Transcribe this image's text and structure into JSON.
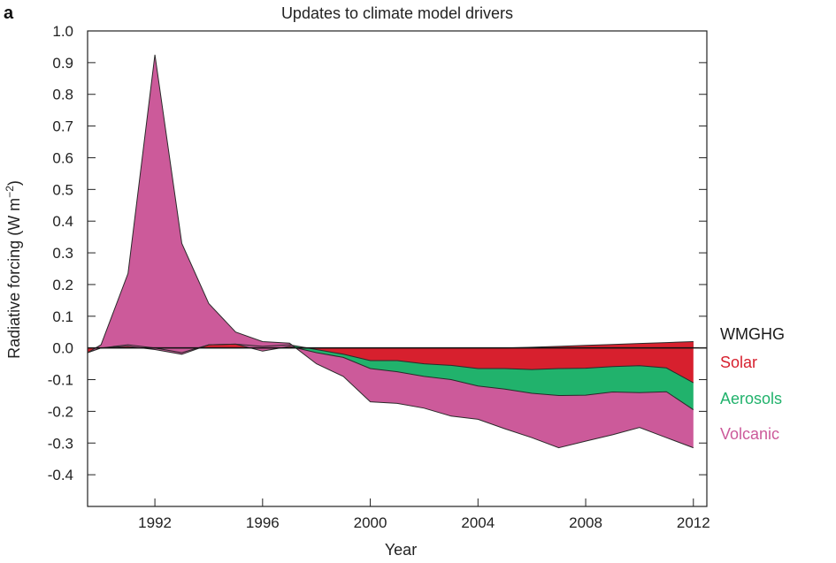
{
  "chart_data": {
    "type": "area",
    "panel_label": "a",
    "title": "Updates to climate model drivers",
    "xlabel": "Year",
    "ylabel": "Radiative forcing (W m",
    "ylabel_exponent": "−2",
    "ylabel_close": ")",
    "xlim": [
      1989.5,
      2012.5
    ],
    "ylim": [
      -0.5,
      1.0
    ],
    "xticks": [
      1992,
      1996,
      2000,
      2004,
      2008,
      2012
    ],
    "xtick_labels": [
      "1992",
      "1996",
      "2000",
      "2004",
      "2008",
      "2012"
    ],
    "yticks": [
      1.0,
      0.9,
      0.8,
      0.7,
      0.6,
      0.5,
      0.4,
      0.3,
      0.2,
      0.1,
      0.0,
      -0.1,
      -0.2,
      -0.3,
      -0.4
    ],
    "ytick_labels": [
      "1.0",
      "0.9",
      "0.8",
      "0.7",
      "0.6",
      "0.5",
      "0.4",
      "0.3",
      "0.2",
      "0.1",
      "0.0",
      "-0.1",
      "-0.2",
      "-0.3",
      "-0.4"
    ],
    "x": [
      1989.5,
      1990,
      1991,
      1992,
      1993,
      1994,
      1995,
      1996,
      1997,
      1998,
      1999,
      2000,
      2001,
      2002,
      2003,
      2004,
      2005,
      2006,
      2007,
      2008,
      2009,
      2010,
      2011,
      2012
    ],
    "series": [
      {
        "name": "WMGHG",
        "color": "#1a1a1a",
        "values": [
          0,
          0,
          0,
          0,
          0,
          0,
          0,
          0,
          0,
          0,
          0,
          0,
          0,
          0,
          0,
          0,
          0,
          0.002,
          0.005,
          0.008,
          0.011,
          0.014,
          0.017,
          0.02
        ]
      },
      {
        "name": "Solar",
        "color": "#d7202e",
        "values": [
          -0.015,
          0.0,
          0.01,
          0.0,
          -0.015,
          0.01,
          0.012,
          0.005,
          0.01,
          -0.005,
          -0.02,
          -0.04,
          -0.04,
          -0.05,
          -0.055,
          -0.065,
          -0.065,
          -0.07,
          -0.07,
          -0.072,
          -0.07,
          -0.07,
          -0.08,
          -0.13
        ]
      },
      {
        "name": "Aerosols",
        "color": "#21b26c",
        "values": [
          0.0,
          0.0,
          -0.005,
          -0.005,
          -0.005,
          0.0,
          0.0,
          -0.015,
          -0.005,
          -0.01,
          -0.01,
          -0.025,
          -0.035,
          -0.04,
          -0.045,
          -0.055,
          -0.065,
          -0.075,
          -0.085,
          -0.085,
          -0.08,
          -0.085,
          -0.075,
          -0.085
        ]
      },
      {
        "name": "Volcanic",
        "color": "#cc5a9a",
        "values": [
          0.0,
          0.01,
          0.23,
          0.93,
          0.35,
          0.13,
          0.038,
          0.03,
          0.01,
          -0.035,
          -0.06,
          -0.105,
          -0.1,
          -0.1,
          -0.115,
          -0.105,
          -0.125,
          -0.14,
          -0.165,
          -0.145,
          -0.135,
          -0.11,
          -0.145,
          -0.12
        ]
      }
    ],
    "legend_position": "right",
    "grid": false
  }
}
